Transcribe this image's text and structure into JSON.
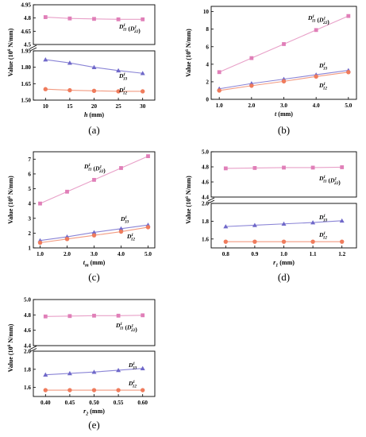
{
  "colors": {
    "d11": "#e8a0c8",
    "d11_marker": "#e07fb8",
    "d33": "#8a84d6",
    "d33_marker": "#6f68c9",
    "d12": "#f29a80",
    "d12_marker": "#ef7b5c",
    "axis": "#000000"
  },
  "chart_data": [
    {
      "id": "a",
      "type": "line",
      "panel_label": "(a)",
      "x_label": "h (mm)",
      "y_label": "Value (10⁶ N/mm)",
      "x": [
        10,
        15,
        20,
        25,
        30
      ],
      "x_ticks": [
        "10",
        "15",
        "20",
        "25",
        "30"
      ],
      "xlim": [
        7.5,
        32.5
      ],
      "broken_axis": true,
      "upper_ylim": [
        4.5,
        4.95
      ],
      "upper_ticks": [
        "4.5",
        "4.65",
        "4.8",
        "4.95"
      ],
      "lower_ylim": [
        1.5,
        1.95
      ],
      "lower_ticks": [
        "1.50",
        "1.65",
        "1.80",
        "1.95"
      ],
      "series": [
        {
          "key": "d11",
          "label": "D¹₁₁ (D¹₂₂)",
          "axis": "upper",
          "values": [
            4.81,
            4.795,
            4.79,
            4.785,
            4.785
          ]
        },
        {
          "key": "d33",
          "label": "D¹₃₃",
          "axis": "lower",
          "values": [
            1.87,
            1.84,
            1.8,
            1.77,
            1.745
          ]
        },
        {
          "key": "d12",
          "label": "D¹₁₂",
          "axis": "lower",
          "values": [
            1.6,
            1.59,
            1.585,
            1.58,
            1.58
          ]
        }
      ]
    },
    {
      "id": "b",
      "type": "line",
      "panel_label": "(b)",
      "x_label": "t (mm)",
      "y_label": "Value (10⁶ N/mm)",
      "x": [
        1.0,
        2.0,
        3.0,
        4.0,
        5.0
      ],
      "x_ticks": [
        "1.0",
        "2.0",
        "3.0",
        "4.0",
        "5.0"
      ],
      "xlim": [
        0.75,
        5.25
      ],
      "broken_axis": false,
      "ylim": [
        0,
        10.6
      ],
      "y_ticks": [
        "0",
        "2",
        "4",
        "6",
        "8",
        "10"
      ],
      "series": [
        {
          "key": "d11",
          "label": "D¹₁₁ (D¹₂₂)",
          "values": [
            3.1,
            4.7,
            6.3,
            7.9,
            9.5
          ]
        },
        {
          "key": "d33",
          "label": "D¹₃₃",
          "values": [
            1.2,
            1.8,
            2.3,
            2.8,
            3.3
          ]
        },
        {
          "key": "d12",
          "label": "D¹₁₂",
          "values": [
            1.0,
            1.55,
            2.05,
            2.6,
            3.1
          ]
        }
      ]
    },
    {
      "id": "c",
      "type": "line",
      "panel_label": "(c)",
      "x_label": "tm (mm)",
      "y_label": "Value (10⁶ N/mm)",
      "x": [
        1.0,
        2.0,
        3.0,
        4.0,
        5.0
      ],
      "x_ticks": [
        "1.0",
        "2.0",
        "3.0",
        "4.0",
        "5.0"
      ],
      "xlim": [
        0.75,
        5.25
      ],
      "broken_axis": false,
      "ylim": [
        1,
        7.5
      ],
      "y_ticks": [
        "1",
        "2",
        "3",
        "4",
        "5",
        "6",
        "7"
      ],
      "series": [
        {
          "key": "d11",
          "label": "D¹₁₁ (D¹₂₂)",
          "values": [
            4.0,
            4.8,
            5.6,
            6.4,
            7.2
          ]
        },
        {
          "key": "d33",
          "label": "D¹₃₃",
          "values": [
            1.5,
            1.75,
            2.05,
            2.3,
            2.55
          ]
        },
        {
          "key": "d12",
          "label": "D¹₁₂",
          "values": [
            1.35,
            1.6,
            1.85,
            2.1,
            2.4
          ]
        }
      ]
    },
    {
      "id": "d",
      "type": "line",
      "panel_label": "(d)",
      "x_label": "r1 (mm)",
      "y_label": "Value (10⁶ N/mm)",
      "x": [
        0.8,
        0.9,
        1.0,
        1.1,
        1.2
      ],
      "x_ticks": [
        "0.8",
        "0.9",
        "1.0",
        "1.1",
        "1.2"
      ],
      "xlim": [
        0.75,
        1.25
      ],
      "broken_axis": true,
      "upper_ylim": [
        4.4,
        5.0
      ],
      "upper_ticks": [
        "4.4",
        "4.6",
        "4.8",
        "5.0"
      ],
      "lower_ylim": [
        1.5,
        2.0
      ],
      "lower_ticks": [
        "1.6",
        "1.8",
        "2.0"
      ],
      "series": [
        {
          "key": "d11",
          "label": "D¹₁₁ (D¹₂₂)",
          "axis": "upper",
          "values": [
            4.78,
            4.785,
            4.79,
            4.79,
            4.795
          ]
        },
        {
          "key": "d33",
          "label": "D¹₃₃",
          "axis": "lower",
          "values": [
            1.74,
            1.755,
            1.77,
            1.785,
            1.805
          ]
        },
        {
          "key": "d12",
          "label": "D¹₁₂",
          "axis": "lower",
          "values": [
            1.57,
            1.57,
            1.57,
            1.57,
            1.57
          ]
        }
      ]
    },
    {
      "id": "e",
      "type": "line",
      "panel_label": "(e)",
      "x_label": "r2 (mm)",
      "y_label": "Value (10⁶ N/mm)",
      "x": [
        0.4,
        0.45,
        0.5,
        0.55,
        0.6
      ],
      "x_ticks": [
        "0.40",
        "0.45",
        "0.50",
        "0.55",
        "0.60"
      ],
      "xlim": [
        0.375,
        0.625
      ],
      "broken_axis": true,
      "upper_ylim": [
        4.4,
        5.0
      ],
      "upper_ticks": [
        "4.4",
        "4.6",
        "4.8",
        "5.0"
      ],
      "lower_ylim": [
        1.5,
        2.0
      ],
      "lower_ticks": [
        "1.6",
        "1.8",
        "2.0"
      ],
      "series": [
        {
          "key": "d11",
          "label": "D¹₁₁ (D¹₂₂)",
          "axis": "upper",
          "values": [
            4.78,
            4.785,
            4.79,
            4.79,
            4.795
          ]
        },
        {
          "key": "d33",
          "label": "D¹₃₃",
          "axis": "lower",
          "values": [
            1.74,
            1.755,
            1.77,
            1.79,
            1.81
          ]
        },
        {
          "key": "d12",
          "label": "D¹₁₂",
          "axis": "lower",
          "values": [
            1.57,
            1.57,
            1.57,
            1.57,
            1.57
          ]
        }
      ]
    }
  ]
}
